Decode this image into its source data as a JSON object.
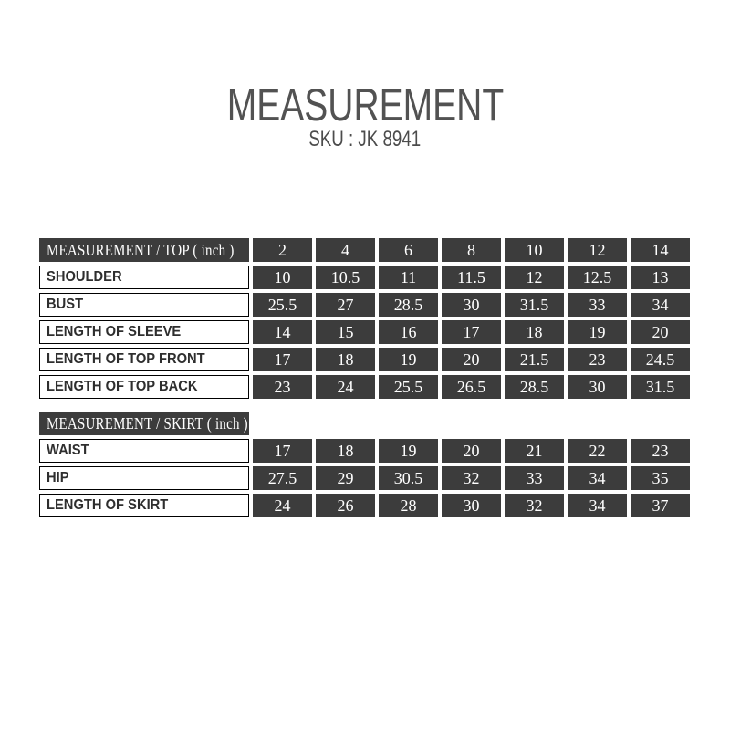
{
  "header": {
    "title": "MEASUREMENT",
    "sku": "SKU : JK 8941"
  },
  "top_table": {
    "header_label": "MEASUREMENT / TOP ( inch )",
    "sizes": [
      "2",
      "4",
      "6",
      "8",
      "10",
      "12",
      "14"
    ],
    "rows": [
      {
        "label": "SHOULDER",
        "values": [
          "10",
          "10.5",
          "11",
          "11.5",
          "12",
          "12.5",
          "13"
        ]
      },
      {
        "label": "BUST",
        "values": [
          "25.5",
          "27",
          "28.5",
          "30",
          "31.5",
          "33",
          "34"
        ]
      },
      {
        "label": "LENGTH OF SLEEVE",
        "values": [
          "14",
          "15",
          "16",
          "17",
          "18",
          "19",
          "20"
        ]
      },
      {
        "label": "LENGTH OF TOP FRONT",
        "values": [
          "17",
          "18",
          "19",
          "20",
          "21.5",
          "23",
          "24.5"
        ]
      },
      {
        "label": "LENGTH OF TOP BACK",
        "values": [
          "23",
          "24",
          "25.5",
          "26.5",
          "28.5",
          "30",
          "31.5"
        ]
      }
    ]
  },
  "skirt_table": {
    "header_label": "MEASUREMENT / SKIRT ( inch )",
    "rows": [
      {
        "label": "WAIST",
        "values": [
          "17",
          "18",
          "19",
          "20",
          "21",
          "22",
          "23"
        ]
      },
      {
        "label": "HIP",
        "values": [
          "27.5",
          "29",
          "30.5",
          "32",
          "33",
          "34",
          "35"
        ]
      },
      {
        "label": "LENGTH OF SKIRT",
        "values": [
          "24",
          "26",
          "28",
          "30",
          "32",
          "34",
          "37"
        ]
      }
    ]
  },
  "colors": {
    "cell_dark": "#3c3c3c",
    "cell_text_light": "#ffffff",
    "label_text": "#2e2e2e",
    "label_border": "#000000",
    "title_text": "#525252",
    "page_bg": "#ffffff"
  }
}
